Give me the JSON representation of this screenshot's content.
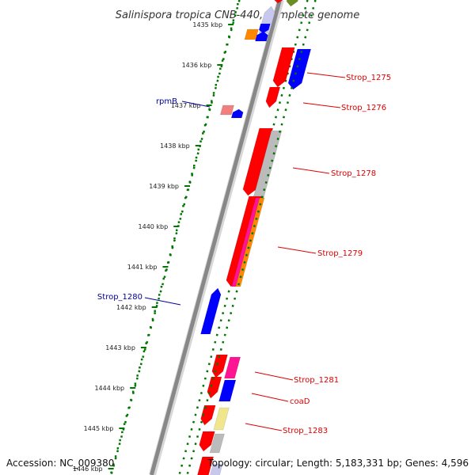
{
  "title": "Salinispora tropica CNB-440, complete genome",
  "accession": "Accession: NC_009380",
  "topology": "Topology: circular; Length: 5,183,331 bp; Genes: 4,596",
  "ruler": [
    "1435 kbp",
    "1436 kbp",
    "1437 kbp",
    "1438 kbp",
    "1439 kbp",
    "1440 kbp",
    "1441 kbp",
    "1442 kbp",
    "1443 kbp",
    "1444 kbp",
    "1445 kbp",
    "1446 kbp"
  ],
  "colors": {
    "forward_label": "#dd0000",
    "reverse_label": "#000099",
    "backbone": "#888888",
    "ruler_ticks": "#007700",
    "red": "#ff0000",
    "blue": "#0000ff",
    "orange": "#ff8800",
    "magenta": "#ff1493",
    "gray": "#bbbbbb",
    "khaki": "#f0e68c",
    "green": "#6b8e23",
    "lavender": "#c8c8ee",
    "pink": "#f08080"
  },
  "gene_labels": [
    {
      "text": "Strop_1275",
      "strand": "forward"
    },
    {
      "text": "Strop_1276",
      "strand": "forward"
    },
    {
      "text": "Strop_1278",
      "strand": "forward"
    },
    {
      "text": "Strop_1279",
      "strand": "forward"
    },
    {
      "text": "Strop_1281",
      "strand": "forward"
    },
    {
      "text": "coaD",
      "strand": "forward"
    },
    {
      "text": "Strop_1283",
      "strand": "forward"
    },
    {
      "text": "rpmB",
      "strand": "reverse"
    },
    {
      "text": "Strop_1280",
      "strand": "reverse"
    }
  ]
}
